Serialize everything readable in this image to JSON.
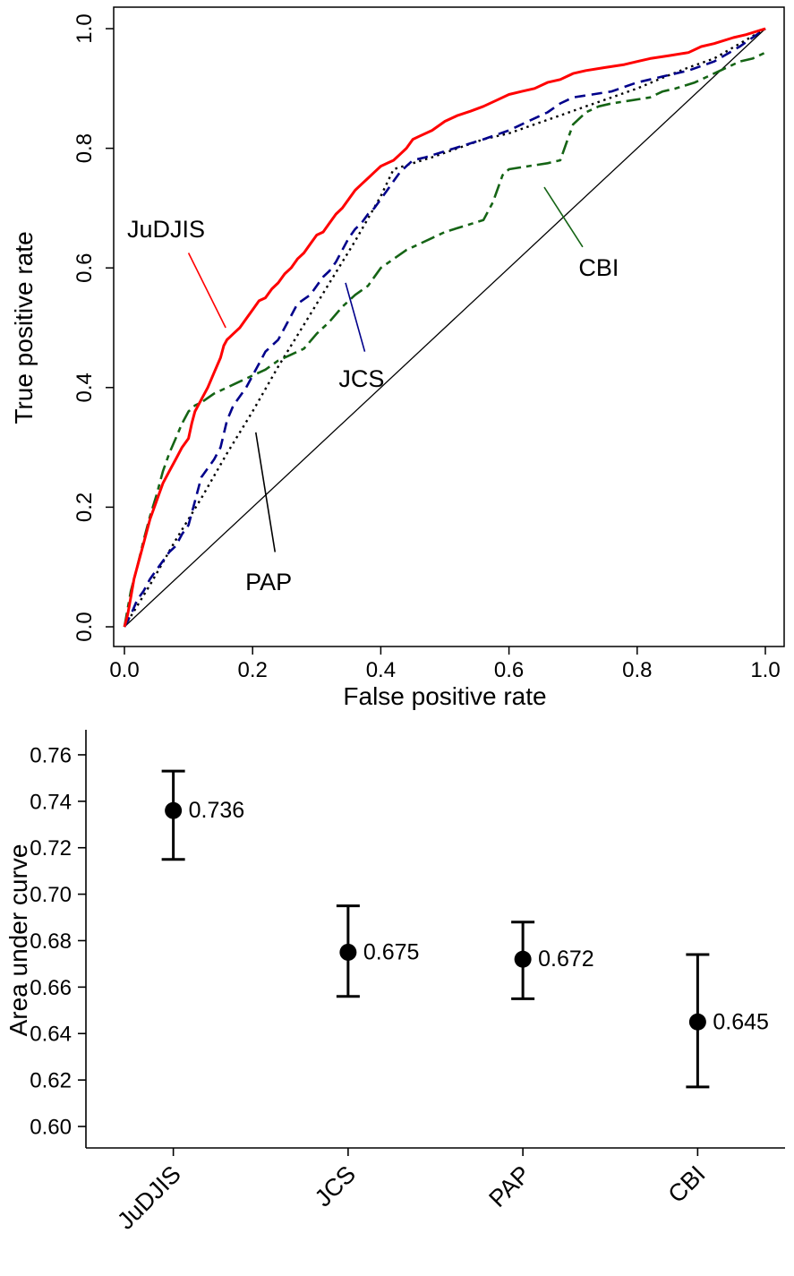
{
  "figure": {
    "background": "#ffffff"
  },
  "chart_data": [
    {
      "name": "roc-curves",
      "type": "line",
      "title": "",
      "xlabel": "False positive rate",
      "ylabel": "True positive rate",
      "xlim": [
        0,
        1
      ],
      "ylim": [
        0,
        1
      ],
      "xticks": [
        0,
        0.2,
        0.4,
        0.6,
        0.8,
        1
      ],
      "xtick_labels": [
        "0.0",
        "0.2",
        "0.4",
        "0.6",
        "0.8",
        "1.0"
      ],
      "yticks": [
        0,
        0.2,
        0.4,
        0.6,
        0.8,
        1
      ],
      "ytick_labels": [
        "0.0",
        "0.2",
        "0.4",
        "0.6",
        "0.8",
        "1.0"
      ],
      "grid": false,
      "frame": "box",
      "legend_position": "in-plot-annotations",
      "reference_line": {
        "from": [
          0,
          0
        ],
        "to": [
          1,
          1
        ],
        "color": "#000000",
        "style": "solid"
      },
      "series": [
        {
          "name": "PAP",
          "color": "#000000",
          "dash": "dotted",
          "width": 2.4,
          "points": [
            [
              0,
              0
            ],
            [
              0.04,
              0.07
            ],
            [
              0.08,
              0.145
            ],
            [
              0.12,
              0.215
            ],
            [
              0.16,
              0.29
            ],
            [
              0.2,
              0.36
            ],
            [
              0.24,
              0.435
            ],
            [
              0.28,
              0.505
            ],
            [
              0.32,
              0.575
            ],
            [
              0.36,
              0.645
            ],
            [
              0.4,
              0.72
            ],
            [
              0.42,
              0.765
            ],
            [
              0.45,
              0.775
            ],
            [
              0.48,
              0.785
            ],
            [
              0.52,
              0.8
            ],
            [
              0.56,
              0.815
            ],
            [
              0.6,
              0.825
            ],
            [
              0.64,
              0.84
            ],
            [
              0.68,
              0.855
            ],
            [
              0.72,
              0.87
            ],
            [
              0.76,
              0.885
            ],
            [
              0.8,
              0.9
            ],
            [
              0.84,
              0.918
            ],
            [
              0.88,
              0.935
            ],
            [
              0.92,
              0.95
            ],
            [
              0.96,
              0.975
            ],
            [
              1,
              1
            ]
          ]
        },
        {
          "name": "CBI",
          "color": "#156415",
          "dash": "dashdot",
          "width": 2.6,
          "points": [
            [
              0,
              0
            ],
            [
              0.005,
              0.03
            ],
            [
              0.01,
              0.06
            ],
            [
              0.02,
              0.1
            ],
            [
              0.03,
              0.145
            ],
            [
              0.04,
              0.185
            ],
            [
              0.05,
              0.22
            ],
            [
              0.06,
              0.26
            ],
            [
              0.07,
              0.29
            ],
            [
              0.08,
              0.315
            ],
            [
              0.09,
              0.34
            ],
            [
              0.1,
              0.36
            ],
            [
              0.11,
              0.37
            ],
            [
              0.12,
              0.375
            ],
            [
              0.14,
              0.39
            ],
            [
              0.16,
              0.4
            ],
            [
              0.18,
              0.41
            ],
            [
              0.2,
              0.42
            ],
            [
              0.22,
              0.43
            ],
            [
              0.24,
              0.445
            ],
            [
              0.26,
              0.455
            ],
            [
              0.28,
              0.465
            ],
            [
              0.3,
              0.49
            ],
            [
              0.32,
              0.51
            ],
            [
              0.34,
              0.535
            ],
            [
              0.36,
              0.555
            ],
            [
              0.38,
              0.57
            ],
            [
              0.4,
              0.6
            ],
            [
              0.42,
              0.615
            ],
            [
              0.44,
              0.63
            ],
            [
              0.46,
              0.64
            ],
            [
              0.48,
              0.65
            ],
            [
              0.5,
              0.66
            ],
            [
              0.53,
              0.67
            ],
            [
              0.56,
              0.68
            ],
            [
              0.575,
              0.71
            ],
            [
              0.59,
              0.755
            ],
            [
              0.6,
              0.765
            ],
            [
              0.63,
              0.77
            ],
            [
              0.66,
              0.775
            ],
            [
              0.68,
              0.78
            ],
            [
              0.69,
              0.81
            ],
            [
              0.7,
              0.84
            ],
            [
              0.72,
              0.86
            ],
            [
              0.74,
              0.87
            ],
            [
              0.76,
              0.875
            ],
            [
              0.79,
              0.88
            ],
            [
              0.82,
              0.885
            ],
            [
              0.84,
              0.895
            ],
            [
              0.86,
              0.9
            ],
            [
              0.89,
              0.91
            ],
            [
              0.92,
              0.925
            ],
            [
              0.94,
              0.935
            ],
            [
              0.96,
              0.945
            ],
            [
              0.98,
              0.95
            ],
            [
              1,
              0.96
            ]
          ]
        },
        {
          "name": "JCS",
          "color": "#00008b",
          "dash": "dashed",
          "width": 2.6,
          "points": [
            [
              0,
              0
            ],
            [
              0.01,
              0.02
            ],
            [
              0.02,
              0.045
            ],
            [
              0.03,
              0.06
            ],
            [
              0.04,
              0.08
            ],
            [
              0.05,
              0.095
            ],
            [
              0.06,
              0.11
            ],
            [
              0.07,
              0.125
            ],
            [
              0.08,
              0.135
            ],
            [
              0.09,
              0.155
            ],
            [
              0.1,
              0.17
            ],
            [
              0.11,
              0.21
            ],
            [
              0.12,
              0.25
            ],
            [
              0.13,
              0.265
            ],
            [
              0.14,
              0.28
            ],
            [
              0.15,
              0.3
            ],
            [
              0.16,
              0.345
            ],
            [
              0.17,
              0.37
            ],
            [
              0.18,
              0.385
            ],
            [
              0.19,
              0.4
            ],
            [
              0.2,
              0.42
            ],
            [
              0.21,
              0.44
            ],
            [
              0.22,
              0.46
            ],
            [
              0.24,
              0.48
            ],
            [
              0.25,
              0.5
            ],
            [
              0.26,
              0.52
            ],
            [
              0.27,
              0.54
            ],
            [
              0.29,
              0.555
            ],
            [
              0.3,
              0.57
            ],
            [
              0.31,
              0.585
            ],
            [
              0.32,
              0.595
            ],
            [
              0.33,
              0.61
            ],
            [
              0.34,
              0.63
            ],
            [
              0.35,
              0.65
            ],
            [
              0.36,
              0.665
            ],
            [
              0.37,
              0.675
            ],
            [
              0.38,
              0.69
            ],
            [
              0.39,
              0.7
            ],
            [
              0.4,
              0.715
            ],
            [
              0.41,
              0.73
            ],
            [
              0.42,
              0.745
            ],
            [
              0.43,
              0.76
            ],
            [
              0.44,
              0.77
            ],
            [
              0.45,
              0.78
            ],
            [
              0.47,
              0.785
            ],
            [
              0.5,
              0.795
            ],
            [
              0.53,
              0.805
            ],
            [
              0.56,
              0.815
            ],
            [
              0.6,
              0.83
            ],
            [
              0.63,
              0.845
            ],
            [
              0.66,
              0.86
            ],
            [
              0.68,
              0.875
            ],
            [
              0.7,
              0.885
            ],
            [
              0.73,
              0.89
            ],
            [
              0.76,
              0.895
            ],
            [
              0.8,
              0.91
            ],
            [
              0.84,
              0.92
            ],
            [
              0.88,
              0.93
            ],
            [
              0.92,
              0.945
            ],
            [
              0.96,
              0.97
            ],
            [
              1,
              1
            ]
          ]
        },
        {
          "name": "JuDJIS",
          "color": "#ff0000",
          "dash": "solid",
          "width": 3,
          "points": [
            [
              0,
              0
            ],
            [
              0.005,
              0.02
            ],
            [
              0.01,
              0.05
            ],
            [
              0.015,
              0.08
            ],
            [
              0.02,
              0.1
            ],
            [
              0.03,
              0.14
            ],
            [
              0.04,
              0.18
            ],
            [
              0.05,
              0.21
            ],
            [
              0.06,
              0.24
            ],
            [
              0.07,
              0.26
            ],
            [
              0.08,
              0.28
            ],
            [
              0.09,
              0.3
            ],
            [
              0.1,
              0.315
            ],
            [
              0.105,
              0.34
            ],
            [
              0.11,
              0.36
            ],
            [
              0.12,
              0.38
            ],
            [
              0.13,
              0.4
            ],
            [
              0.14,
              0.425
            ],
            [
              0.15,
              0.45
            ],
            [
              0.155,
              0.47
            ],
            [
              0.16,
              0.48
            ],
            [
              0.17,
              0.49
            ],
            [
              0.18,
              0.5
            ],
            [
              0.19,
              0.515
            ],
            [
              0.2,
              0.53
            ],
            [
              0.21,
              0.545
            ],
            [
              0.22,
              0.55
            ],
            [
              0.23,
              0.565
            ],
            [
              0.24,
              0.575
            ],
            [
              0.25,
              0.59
            ],
            [
              0.26,
              0.6
            ],
            [
              0.27,
              0.615
            ],
            [
              0.28,
              0.625
            ],
            [
              0.29,
              0.64
            ],
            [
              0.3,
              0.655
            ],
            [
              0.31,
              0.66
            ],
            [
              0.32,
              0.675
            ],
            [
              0.33,
              0.69
            ],
            [
              0.34,
              0.7
            ],
            [
              0.35,
              0.715
            ],
            [
              0.36,
              0.73
            ],
            [
              0.37,
              0.74
            ],
            [
              0.38,
              0.75
            ],
            [
              0.39,
              0.76
            ],
            [
              0.4,
              0.77
            ],
            [
              0.41,
              0.775
            ],
            [
              0.42,
              0.78
            ],
            [
              0.43,
              0.79
            ],
            [
              0.44,
              0.8
            ],
            [
              0.45,
              0.815
            ],
            [
              0.46,
              0.82
            ],
            [
              0.48,
              0.83
            ],
            [
              0.5,
              0.845
            ],
            [
              0.52,
              0.855
            ],
            [
              0.54,
              0.862
            ],
            [
              0.56,
              0.87
            ],
            [
              0.58,
              0.88
            ],
            [
              0.6,
              0.89
            ],
            [
              0.62,
              0.895
            ],
            [
              0.64,
              0.9
            ],
            [
              0.66,
              0.91
            ],
            [
              0.68,
              0.915
            ],
            [
              0.7,
              0.925
            ],
            [
              0.72,
              0.93
            ],
            [
              0.75,
              0.935
            ],
            [
              0.78,
              0.94
            ],
            [
              0.8,
              0.945
            ],
            [
              0.82,
              0.95
            ],
            [
              0.85,
              0.955
            ],
            [
              0.88,
              0.96
            ],
            [
              0.9,
              0.97
            ],
            [
              0.92,
              0.975
            ],
            [
              0.95,
              0.985
            ],
            [
              0.97,
              0.99
            ],
            [
              1,
              1
            ]
          ]
        }
      ],
      "annotations": [
        {
          "text": "JuDJIS",
          "color": "#ff0000",
          "text_xy": [
            0.065,
            0.665
          ],
          "leader_from": [
            0.1,
            0.625
          ],
          "leader_to": [
            0.158,
            0.5
          ]
        },
        {
          "text": "JCS",
          "color": "#00008b",
          "text_xy": [
            0.37,
            0.415
          ],
          "leader_from": [
            0.345,
            0.575
          ],
          "leader_to": [
            0.375,
            0.46
          ]
        },
        {
          "text": "CBI",
          "color": "#156415",
          "text_xy": [
            0.74,
            0.6
          ],
          "leader_from": [
            0.655,
            0.735
          ],
          "leader_to": [
            0.715,
            0.635
          ]
        },
        {
          "text": "PAP",
          "color": "#000000",
          "text_xy": [
            0.225,
            0.075
          ],
          "leader_from": [
            0.205,
            0.325
          ],
          "leader_to": [
            0.235,
            0.125
          ]
        }
      ]
    },
    {
      "name": "auc-estimates",
      "type": "scatter",
      "title": "",
      "xlabel": "",
      "ylabel": "Area under curve",
      "categories": [
        "JuDJIS",
        "JCS",
        "PAP",
        "CBI"
      ],
      "values": [
        0.736,
        0.675,
        0.672,
        0.645
      ],
      "value_labels": [
        "0.736",
        "0.675",
        "0.672",
        "0.645"
      ],
      "ci_low": [
        0.715,
        0.656,
        0.655,
        0.617
      ],
      "ci_high": [
        0.753,
        0.695,
        0.688,
        0.674
      ],
      "ylim": [
        0.595,
        0.775
      ],
      "yticks": [
        0.6,
        0.62,
        0.64,
        0.66,
        0.68,
        0.7,
        0.72,
        0.74,
        0.76
      ],
      "ytick_labels": [
        "0.60",
        "0.62",
        "0.64",
        "0.66",
        "0.68",
        "0.70",
        "0.72",
        "0.74",
        "0.76"
      ],
      "grid": false,
      "frame": "axes-left-bottom",
      "point_color": "#000000"
    }
  ]
}
